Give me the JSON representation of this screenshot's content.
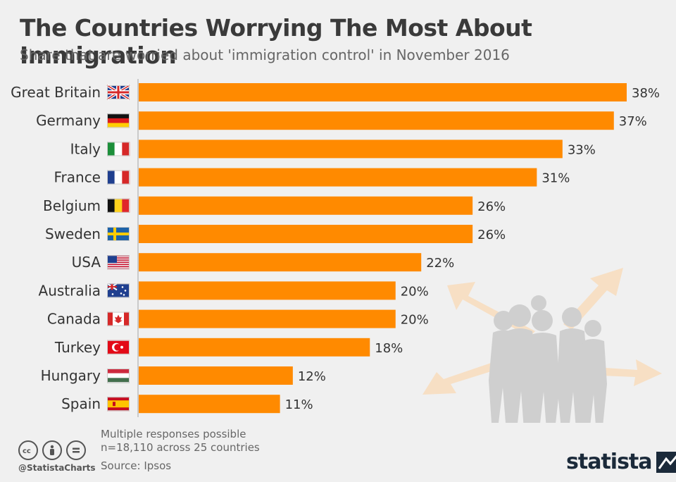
{
  "header": {
    "title": "The Countries Worrying The Most About Immigration",
    "subtitle": "Share that are worried about 'immigration control' in November 2016"
  },
  "chart_data": {
    "type": "bar",
    "orientation": "horizontal",
    "categories": [
      "Great Britain",
      "Germany",
      "Italy",
      "France",
      "Belgium",
      "Sweden",
      "USA",
      "Australia",
      "Canada",
      "Turkey",
      "Hungary",
      "Spain"
    ],
    "values": [
      38,
      37,
      33,
      31,
      26,
      26,
      22,
      20,
      20,
      18,
      12,
      11
    ],
    "value_labels": [
      "38%",
      "37%",
      "33%",
      "31%",
      "26%",
      "26%",
      "22%",
      "20%",
      "20%",
      "18%",
      "12%",
      "11%"
    ],
    "flags": [
      "gb-flag-icon",
      "de-flag-icon",
      "it-flag-icon",
      "fr-flag-icon",
      "be-flag-icon",
      "se-flag-icon",
      "us-flag-icon",
      "au-flag-icon",
      "ca-flag-icon",
      "tr-flag-icon",
      "hu-flag-icon",
      "es-flag-icon"
    ],
    "unit": "%",
    "xlim": [
      0,
      38
    ],
    "grid": false,
    "bar_color": "#ff8a00"
  },
  "footer": {
    "notes": [
      "Multiple responses possible",
      "n=18,110 across 25 countries"
    ],
    "source": "Source: Ipsos",
    "handle": "@StatistaCharts",
    "brand": "statista",
    "cc_icons": [
      "cc-icon",
      "by-icon",
      "nd-icon"
    ]
  },
  "colors": {
    "background": "#f0f0f0",
    "bar": "#ff8a00",
    "illustration": "#cfcfcf",
    "arrow": "#f7dfc4"
  }
}
